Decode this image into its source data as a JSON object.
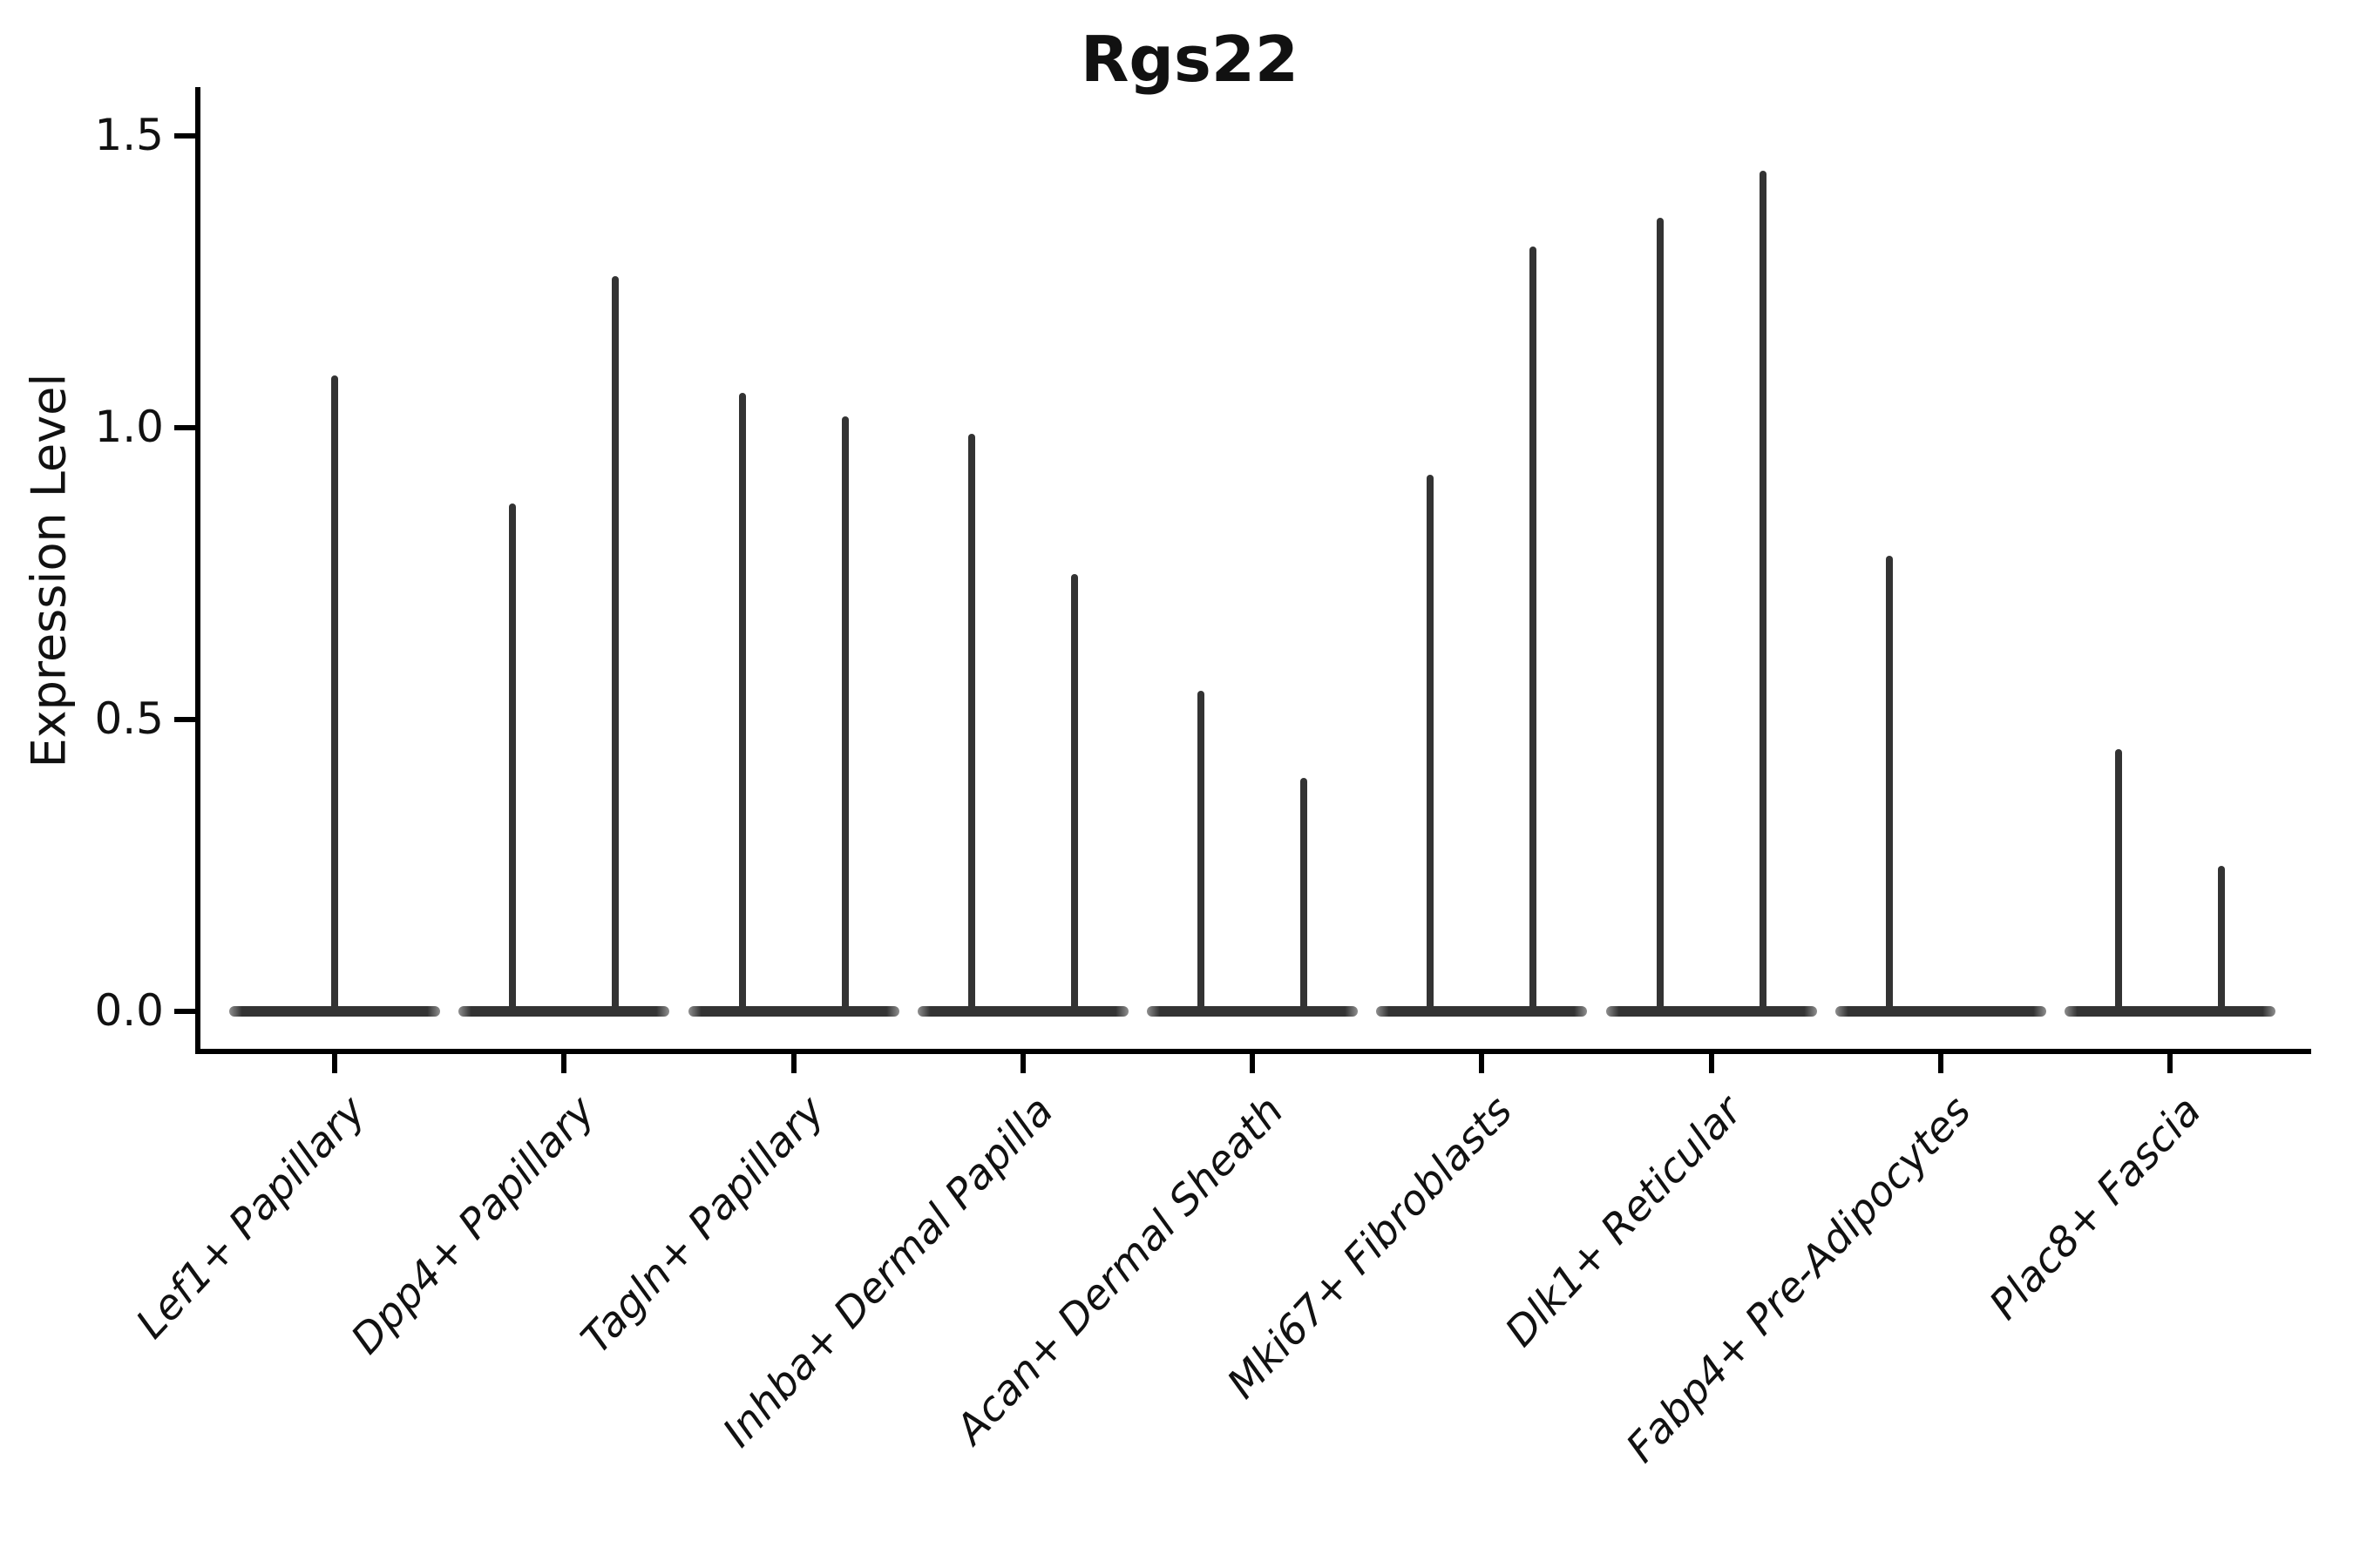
{
  "title": "Rgs22",
  "ylabel": "Expression Level",
  "chart_data": {
    "type": "violin",
    "title": "Rgs22",
    "xlabel": "",
    "ylabel": "Expression Level",
    "ylim": [
      -0.07,
      1.57
    ],
    "yticks": [
      0.0,
      0.5,
      1.0,
      1.5
    ],
    "yticklabels": [
      "0.0",
      "0.5",
      "1.0",
      "1.5"
    ],
    "grid": false,
    "legend": "none",
    "description": "Violin plot of Rgs22 expression; each group is a near-flat violin at 0 with one or two thin vertical tails (spikes) reaching the maximum expression values.",
    "categories": [
      "Lef1+ Papillary",
      "Dpp4+ Papillary",
      "Tagln+ Papillary",
      "Inhba+ Dermal Papilla",
      "Acan+ Dermal Sheath",
      "Mki67+ Fibroblasts",
      "Dlk1+ Reticular",
      "Fabp4+ Pre-Adipocytes",
      "Plac8+ Fascia"
    ],
    "series": [
      {
        "category": "Lef1+ Papillary",
        "base_value": 0.0,
        "spikes": [
          {
            "position": "center",
            "max": 1.09
          }
        ]
      },
      {
        "category": "Dpp4+ Papillary",
        "base_value": 0.0,
        "spikes": [
          {
            "position": "left",
            "max": 0.87
          },
          {
            "position": "right",
            "max": 1.26
          }
        ]
      },
      {
        "category": "Tagln+ Papillary",
        "base_value": 0.0,
        "spikes": [
          {
            "position": "left",
            "max": 1.06
          },
          {
            "position": "right",
            "max": 1.02
          }
        ]
      },
      {
        "category": "Inhba+ Dermal Papilla",
        "base_value": 0.0,
        "spikes": [
          {
            "position": "left",
            "max": 0.99
          },
          {
            "position": "right",
            "max": 0.75
          }
        ]
      },
      {
        "category": "Acan+ Dermal Sheath",
        "base_value": 0.0,
        "spikes": [
          {
            "position": "left",
            "max": 0.55
          },
          {
            "position": "right",
            "max": 0.4
          }
        ]
      },
      {
        "category": "Mki67+ Fibroblasts",
        "base_value": 0.0,
        "spikes": [
          {
            "position": "left",
            "max": 0.92
          },
          {
            "position": "right",
            "max": 1.31
          }
        ]
      },
      {
        "category": "Dlk1+ Reticular",
        "base_value": 0.0,
        "spikes": [
          {
            "position": "left",
            "max": 1.36
          },
          {
            "position": "right",
            "max": 1.44
          }
        ]
      },
      {
        "category": "Fabp4+ Pre-Adipocytes",
        "base_value": 0.0,
        "spikes": [
          {
            "position": "left",
            "max": 0.78
          }
        ]
      },
      {
        "category": "Plac8+ Fascia",
        "base_value": 0.0,
        "spikes": [
          {
            "position": "left",
            "max": 0.45
          },
          {
            "position": "right",
            "max": 0.25
          }
        ]
      }
    ],
    "colors": {
      "violin": "#333333",
      "spine": "#000000",
      "text": "#111111",
      "background": "#ffffff"
    }
  }
}
